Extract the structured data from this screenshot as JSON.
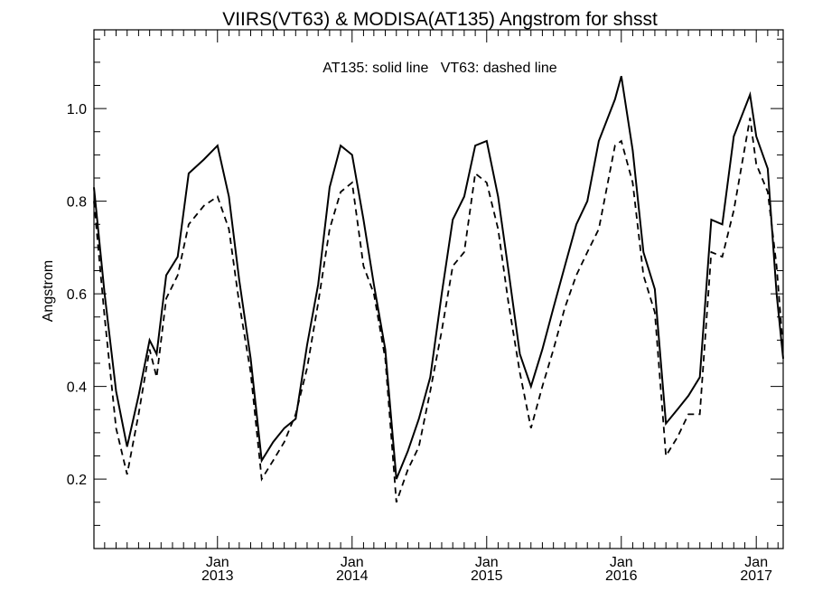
{
  "chart_data": {
    "type": "line",
    "title": "VIIRS(VT63) & MODISA(AT135)  Angstrom for shsst",
    "annotation": "AT135: solid line   VT63: dashed line",
    "xlabel": "",
    "ylabel": "Angstrom",
    "xlim": [
      "2012-02-01",
      "2017-03-15"
    ],
    "ylim": [
      0.05,
      1.17
    ],
    "y_ticks": [
      {
        "value": 0.2,
        "label": "0.2"
      },
      {
        "value": 0.4,
        "label": "0.4"
      },
      {
        "value": 0.6,
        "label": "0.6"
      },
      {
        "value": 0.8,
        "label": "0.8"
      },
      {
        "value": 1.0,
        "label": "1.0"
      }
    ],
    "x_ticks": [
      {
        "date": "2013-01-01",
        "month": "Jan",
        "year": "2013"
      },
      {
        "date": "2014-01-01",
        "month": "Jan",
        "year": "2014"
      },
      {
        "date": "2015-01-01",
        "month": "Jan",
        "year": "2015"
      },
      {
        "date": "2016-01-01",
        "month": "Jan",
        "year": "2016"
      },
      {
        "date": "2017-01-01",
        "month": "Jan",
        "year": "2017"
      }
    ],
    "grid": false,
    "series": [
      {
        "name": "AT135",
        "style": "solid",
        "color": "#000000",
        "points": [
          [
            "2012-02-01",
            0.83
          ],
          [
            "2012-03-01",
            0.6
          ],
          [
            "2012-04-01",
            0.39
          ],
          [
            "2012-05-01",
            0.27
          ],
          [
            "2012-06-01",
            0.38
          ],
          [
            "2012-07-01",
            0.5
          ],
          [
            "2012-07-20",
            0.47
          ],
          [
            "2012-08-15",
            0.64
          ],
          [
            "2012-09-15",
            0.68
          ],
          [
            "2012-10-15",
            0.86
          ],
          [
            "2012-11-25",
            0.89
          ],
          [
            "2013-01-01",
            0.92
          ],
          [
            "2013-02-01",
            0.81
          ],
          [
            "2013-03-01",
            0.63
          ],
          [
            "2013-04-01",
            0.46
          ],
          [
            "2013-05-01",
            0.24
          ],
          [
            "2013-06-01",
            0.28
          ],
          [
            "2013-07-01",
            0.31
          ],
          [
            "2013-08-01",
            0.33
          ],
          [
            "2013-09-01",
            0.49
          ],
          [
            "2013-10-01",
            0.62
          ],
          [
            "2013-11-01",
            0.83
          ],
          [
            "2013-12-01",
            0.92
          ],
          [
            "2014-01-01",
            0.9
          ],
          [
            "2014-02-01",
            0.76
          ],
          [
            "2014-03-01",
            0.62
          ],
          [
            "2014-04-01",
            0.48
          ],
          [
            "2014-05-01",
            0.2
          ],
          [
            "2014-06-01",
            0.26
          ],
          [
            "2014-07-01",
            0.33
          ],
          [
            "2014-08-01",
            0.42
          ],
          [
            "2014-09-01",
            0.6
          ],
          [
            "2014-10-01",
            0.76
          ],
          [
            "2014-11-01",
            0.81
          ],
          [
            "2014-12-01",
            0.92
          ],
          [
            "2015-01-01",
            0.93
          ],
          [
            "2015-02-01",
            0.81
          ],
          [
            "2015-03-01",
            0.65
          ],
          [
            "2015-04-01",
            0.47
          ],
          [
            "2015-05-01",
            0.4
          ],
          [
            "2015-06-01",
            0.48
          ],
          [
            "2015-07-01",
            0.57
          ],
          [
            "2015-08-01",
            0.66
          ],
          [
            "2015-09-01",
            0.75
          ],
          [
            "2015-10-01",
            0.8
          ],
          [
            "2015-11-01",
            0.93
          ],
          [
            "2015-12-15",
            1.02
          ],
          [
            "2016-01-01",
            1.07
          ],
          [
            "2016-02-01",
            0.91
          ],
          [
            "2016-03-01",
            0.69
          ],
          [
            "2016-04-01",
            0.61
          ],
          [
            "2016-05-01",
            0.32
          ],
          [
            "2016-06-01",
            0.35
          ],
          [
            "2016-07-01",
            0.38
          ],
          [
            "2016-08-01",
            0.42
          ],
          [
            "2016-09-01",
            0.76
          ],
          [
            "2016-10-01",
            0.75
          ],
          [
            "2016-11-01",
            0.94
          ],
          [
            "2016-12-15",
            1.03
          ],
          [
            "2017-01-01",
            0.94
          ],
          [
            "2017-02-01",
            0.87
          ],
          [
            "2017-02-25",
            0.6
          ],
          [
            "2017-03-15",
            0.46
          ]
        ]
      },
      {
        "name": "VT63",
        "style": "dashed",
        "color": "#000000",
        "points": [
          [
            "2012-02-01",
            0.8
          ],
          [
            "2012-03-01",
            0.55
          ],
          [
            "2012-04-01",
            0.31
          ],
          [
            "2012-05-01",
            0.21
          ],
          [
            "2012-06-01",
            0.34
          ],
          [
            "2012-07-01",
            0.48
          ],
          [
            "2012-07-20",
            0.42
          ],
          [
            "2012-08-15",
            0.59
          ],
          [
            "2012-09-15",
            0.64
          ],
          [
            "2012-10-15",
            0.75
          ],
          [
            "2012-11-25",
            0.79
          ],
          [
            "2013-01-01",
            0.81
          ],
          [
            "2013-02-01",
            0.74
          ],
          [
            "2013-03-01",
            0.58
          ],
          [
            "2013-04-01",
            0.43
          ],
          [
            "2013-05-01",
            0.2
          ],
          [
            "2013-06-01",
            0.24
          ],
          [
            "2013-07-01",
            0.28
          ],
          [
            "2013-08-01",
            0.34
          ],
          [
            "2013-09-01",
            0.44
          ],
          [
            "2013-10-01",
            0.58
          ],
          [
            "2013-11-01",
            0.74
          ],
          [
            "2013-12-01",
            0.82
          ],
          [
            "2014-01-01",
            0.84
          ],
          [
            "2014-02-01",
            0.66
          ],
          [
            "2014-03-01",
            0.6
          ],
          [
            "2014-04-01",
            0.46
          ],
          [
            "2014-05-01",
            0.15
          ],
          [
            "2014-06-01",
            0.22
          ],
          [
            "2014-07-01",
            0.27
          ],
          [
            "2014-08-01",
            0.39
          ],
          [
            "2014-09-01",
            0.52
          ],
          [
            "2014-10-01",
            0.66
          ],
          [
            "2014-11-01",
            0.69
          ],
          [
            "2014-12-01",
            0.86
          ],
          [
            "2015-01-01",
            0.84
          ],
          [
            "2015-02-01",
            0.74
          ],
          [
            "2015-03-01",
            0.58
          ],
          [
            "2015-04-01",
            0.43
          ],
          [
            "2015-05-01",
            0.31
          ],
          [
            "2015-06-01",
            0.4
          ],
          [
            "2015-07-01",
            0.48
          ],
          [
            "2015-08-01",
            0.57
          ],
          [
            "2015-09-01",
            0.64
          ],
          [
            "2015-10-01",
            0.69
          ],
          [
            "2015-11-01",
            0.74
          ],
          [
            "2015-12-15",
            0.92
          ],
          [
            "2016-01-01",
            0.93
          ],
          [
            "2016-02-01",
            0.84
          ],
          [
            "2016-03-01",
            0.64
          ],
          [
            "2016-04-01",
            0.56
          ],
          [
            "2016-05-01",
            0.25
          ],
          [
            "2016-06-01",
            0.29
          ],
          [
            "2016-07-01",
            0.34
          ],
          [
            "2016-08-01",
            0.34
          ],
          [
            "2016-09-01",
            0.69
          ],
          [
            "2016-10-01",
            0.68
          ],
          [
            "2016-11-01",
            0.78
          ],
          [
            "2016-12-15",
            0.98
          ],
          [
            "2017-01-01",
            0.88
          ],
          [
            "2017-02-01",
            0.82
          ],
          [
            "2017-02-25",
            0.66
          ],
          [
            "2017-03-15",
            0.48
          ]
        ]
      }
    ]
  }
}
